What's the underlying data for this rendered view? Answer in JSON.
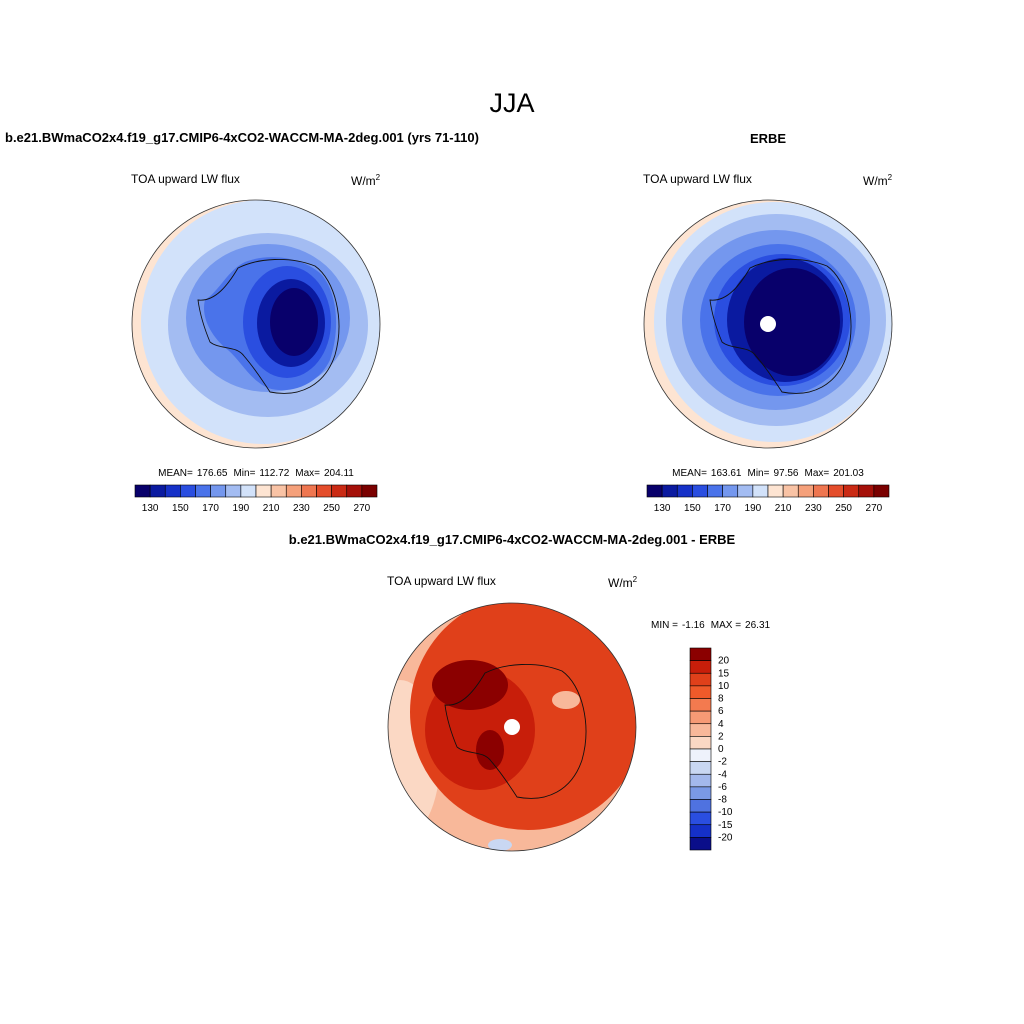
{
  "title": "JJA",
  "panels": [
    {
      "title": "b.e21.BWmaCO2x4.f19_g17.CMIP6-4xCO2-WACCM-MA-2deg.001 (yrs 71-110)",
      "variable": "TOA upward LW flux",
      "units": "W/m",
      "units_exponent": "2",
      "stats": [
        {
          "label": "MEAN=",
          "value": 176.65
        },
        {
          "label": "Min=",
          "value": 112.72
        },
        {
          "label": "Max=",
          "value": 204.11
        }
      ]
    },
    {
      "title": "ERBE",
      "variable": "TOA upward LW flux",
      "units": "W/m",
      "units_exponent": "2",
      "stats": [
        {
          "label": "MEAN=",
          "value": 163.61
        },
        {
          "label": "Min=",
          "value": 97.56
        },
        {
          "label": "Max=",
          "value": 201.03
        }
      ]
    },
    {
      "title": "b.e21.BWmaCO2x4.f19_g17.CMIP6-4xCO2-WACCM-MA-2deg.001 - ERBE",
      "variable": "TOA upward LW flux",
      "units": "W/m",
      "units_exponent": "2",
      "stats": [
        {
          "label": "MIN =",
          "value": -1.16
        },
        {
          "label": "MAX =",
          "value": 26.31
        }
      ]
    }
  ],
  "colorbars": [
    {
      "orientation": "horizontal",
      "colors": [
        "#08006b",
        "#0a1aa0",
        "#1631c8",
        "#2a4ee0",
        "#4a73ea",
        "#7497ee",
        "#a3bcf2",
        "#d2e2fa",
        "#fde4d2",
        "#f9c3a5",
        "#f5a07a",
        "#ef7650",
        "#e44d2b",
        "#ca2a14",
        "#a51009",
        "#7a0000"
      ],
      "labels": [
        130,
        150,
        170,
        190,
        210,
        230,
        250,
        270
      ]
    },
    {
      "orientation": "horizontal",
      "colors": [
        "#08006b",
        "#0a1aa0",
        "#1631c8",
        "#2a4ee0",
        "#4a73ea",
        "#7497ee",
        "#a3bcf2",
        "#d2e2fa",
        "#fde4d2",
        "#f9c3a5",
        "#f5a07a",
        "#ef7650",
        "#e44d2b",
        "#ca2a14",
        "#a51009",
        "#7a0000"
      ],
      "labels": [
        130,
        150,
        170,
        190,
        210,
        230,
        250,
        270
      ]
    },
    {
      "orientation": "vertical",
      "colors": [
        "#8b0000",
        "#c81e0a",
        "#e0401a",
        "#ef5a2a",
        "#f37a4f",
        "#f69a75",
        "#f8b89a",
        "#fbd8c4",
        "#eef2fb",
        "#c9d7f2",
        "#a3b8ec",
        "#7a99e6",
        "#4f72e0",
        "#2a4ee0",
        "#1530c8",
        "#0a0e8a"
      ],
      "labels": [
        20,
        15,
        10,
        8,
        6,
        4,
        2,
        0,
        -2,
        -4,
        -6,
        -8,
        -10,
        -15,
        -20
      ]
    }
  ]
}
